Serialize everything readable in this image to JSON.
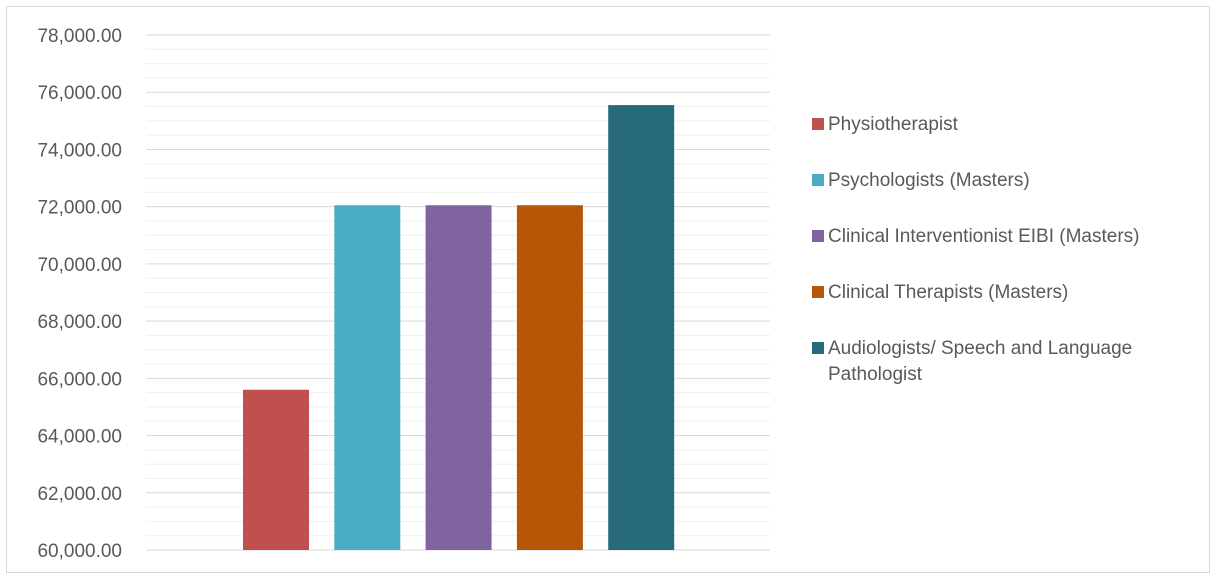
{
  "chart_data": {
    "type": "bar",
    "categories": [
      "Physiotherapist",
      "Psychologists (Masters)",
      "Clinical Interventionist EIBI (Masters)",
      "Clinical Therapists (Masters)",
      "Audiologists/ Speech and Language Pathologist"
    ],
    "values": [
      65600,
      72050,
      72050,
      72050,
      75550
    ],
    "colors": [
      "#c0504d",
      "#4bacc6",
      "#8064a2",
      "#b65708",
      "#276a7c"
    ],
    "ylim": [
      60000,
      78000
    ],
    "yticks": [
      "60,000.00",
      "62,000.00",
      "64,000.00",
      "66,000.00",
      "68,000.00",
      "70,000.00",
      "72,000.00",
      "74,000.00",
      "76,000.00",
      "78,000.00"
    ],
    "title": "",
    "xlabel": "",
    "ylabel": "",
    "grid": true,
    "legend_position": "right"
  }
}
